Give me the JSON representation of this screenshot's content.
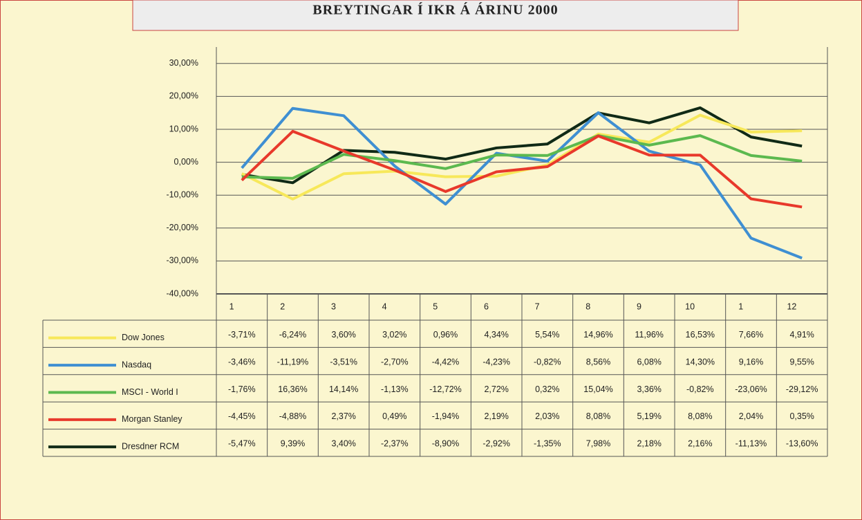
{
  "chart_data": {
    "type": "line",
    "title": "BREYTINGAR Í IKR Á ÁRINU 2000",
    "categories": [
      "1",
      "2",
      "3",
      "4",
      "5",
      "6",
      "7",
      "8",
      "9",
      "10",
      "1",
      "12"
    ],
    "ylim": [
      -40,
      35
    ],
    "yticks": [
      {
        "value": -40,
        "label": "-40,00%"
      },
      {
        "value": -30,
        "label": "-30,00%"
      },
      {
        "value": -20,
        "label": "-20,00%"
      },
      {
        "value": -10,
        "label": "-10,00%"
      },
      {
        "value": 0,
        "label": "0,00%"
      },
      {
        "value": 10,
        "label": "10,00%"
      },
      {
        "value": 20,
        "label": "20,00%"
      },
      {
        "value": 30,
        "label": "30,00%"
      }
    ],
    "grid": true,
    "series": [
      {
        "name": "Dow Jones",
        "color": "#f7e85a",
        "line_color": "#102a16",
        "values": [
          -3.71,
          -6.24,
          3.6,
          3.02,
          0.96,
          4.34,
          5.54,
          14.96,
          11.96,
          16.53,
          7.66,
          4.91
        ],
        "value_labels": [
          "-3,71%",
          "-6,24%",
          "3,60%",
          "3,02%",
          "0,96%",
          "4,34%",
          "5,54%",
          "14,96%",
          "11,96%",
          "16,53%",
          "7,66%",
          "4,91%"
        ]
      },
      {
        "name": "Nasdaq",
        "color": "#3f8fd2",
        "line_color": "#f7e85a",
        "values": [
          -3.46,
          -11.19,
          -3.51,
          -2.7,
          -4.42,
          -4.23,
          -0.82,
          8.56,
          6.08,
          14.3,
          9.16,
          9.55
        ],
        "value_labels": [
          "-3,46%",
          "-11,19%",
          "-3,51%",
          "-2,70%",
          "-4,42%",
          "-4,23%",
          "-0,82%",
          "8,56%",
          "6,08%",
          "14,30%",
          "9,16%",
          "9,55%"
        ]
      },
      {
        "name": "MSCI - World I",
        "color": "#5cb94f",
        "line_color": "#3f8fd2",
        "values": [
          -1.76,
          16.36,
          14.14,
          -1.13,
          -12.72,
          2.72,
          0.32,
          15.04,
          3.36,
          -0.82,
          -23.06,
          -29.12
        ],
        "value_labels": [
          "-1,76%",
          "16,36%",
          "14,14%",
          "-1,13%",
          "-12,72%",
          "2,72%",
          "0,32%",
          "15,04%",
          "3,36%",
          "-0,82%",
          "-23,06%",
          "-29,12%"
        ]
      },
      {
        "name": "Morgan Stanley",
        "color": "#e8392b",
        "line_color": "#5cb94f",
        "values": [
          -4.45,
          -4.88,
          2.37,
          0.49,
          -1.94,
          2.19,
          2.03,
          8.08,
          5.19,
          8.08,
          2.04,
          0.35
        ],
        "value_labels": [
          "-4,45%",
          "-4,88%",
          "2,37%",
          "0,49%",
          "-1,94%",
          "2,19%",
          "2,03%",
          "8,08%",
          "5,19%",
          "8,08%",
          "2,04%",
          "0,35%"
        ]
      },
      {
        "name": "Dresdner RCM",
        "color": "#102a16",
        "line_color": "#e8392b",
        "values": [
          -5.47,
          9.39,
          3.4,
          -2.37,
          -8.9,
          -2.92,
          -1.35,
          7.98,
          2.18,
          2.16,
          -11.13,
          -13.6
        ],
        "value_labels": [
          "-5,47%",
          "9,39%",
          "3,40%",
          "-2,37%",
          "-8,90%",
          "-2,92%",
          "-1,35%",
          "7,98%",
          "2,18%",
          "2,16%",
          "-11,13%",
          "-13,60%"
        ]
      }
    ]
  }
}
